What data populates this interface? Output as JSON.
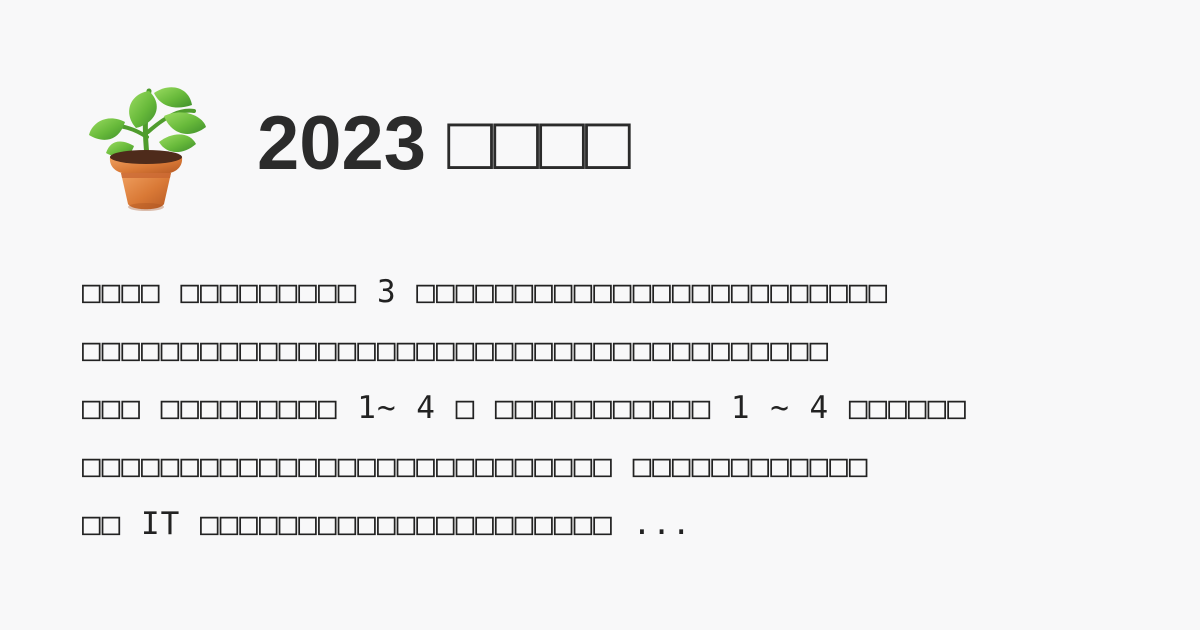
{
  "page": {
    "title": "2023 □□□□",
    "excerpt_lines": [
      "□□□□ □□□□□□□□□ 3 □□□□□□□□□□□□□□□□□□□□□□□□",
      "□□□□□□□□□□□□□□□□□□□□□□□□□□□□□□□□□□□□□□",
      "□□□ □□□□□□□□□ 1~ 4 □ □□□□□□□□□□□ 1 ~ 4 □□□□□□",
      "□□□□□□□□□□□□□□□□□□□□□□□□□□□ □□□□□□□□□□□□",
      "□□ IT □□□□□□□□□□□□□□□□□□□□□ ..."
    ]
  },
  "icon": {
    "name": "potted-plant-icon",
    "colors": {
      "pot": "#d97936",
      "pot_shadow": "#b75a24",
      "soil": "#4e2b1b",
      "leaf": "#67b93a",
      "leaf_dark": "#3f8f2c"
    }
  }
}
